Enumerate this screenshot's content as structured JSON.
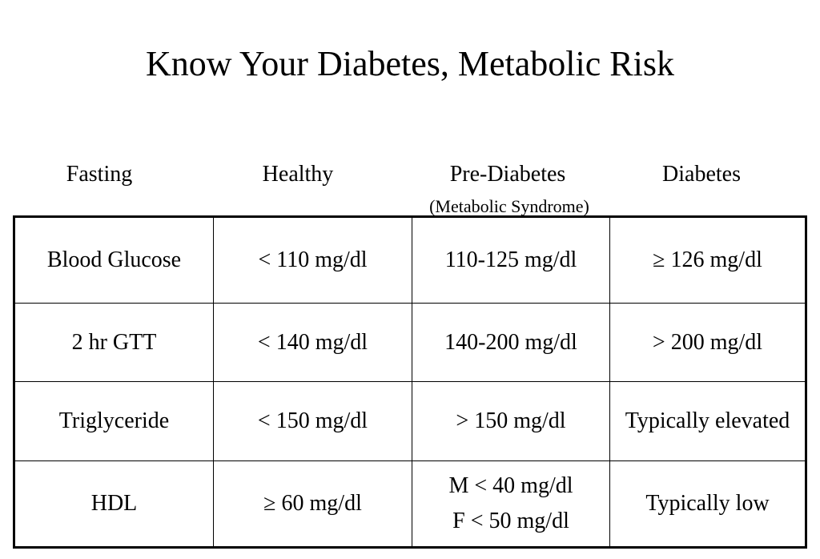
{
  "title": "Know Your Diabetes, Metabolic Risk",
  "table": {
    "headers": [
      "Fasting",
      "Healthy",
      "Pre-Diabetes",
      "Diabetes"
    ],
    "header_subtitle": "(Metabolic Syndrome)",
    "rows": [
      {
        "label": "Blood Glucose",
        "healthy": "< 110 mg/dl",
        "pre_diabetes": "110-125 mg/dl",
        "diabetes": "≥ 126 mg/dl"
      },
      {
        "label": "2 hr GTT",
        "healthy": "< 140 mg/dl",
        "pre_diabetes": "140-200 mg/dl",
        "diabetes": "> 200 mg/dl"
      },
      {
        "label": "Triglyceride",
        "healthy": "< 150 mg/dl",
        "pre_diabetes": "> 150 mg/dl",
        "diabetes": "Typically elevated"
      },
      {
        "label": "HDL",
        "healthy": "≥ 60 mg/dl",
        "pre_diabetes_lines": [
          "M < 40 mg/dl",
          "F < 50 mg/dl"
        ],
        "diabetes": "Typically low"
      }
    ]
  }
}
